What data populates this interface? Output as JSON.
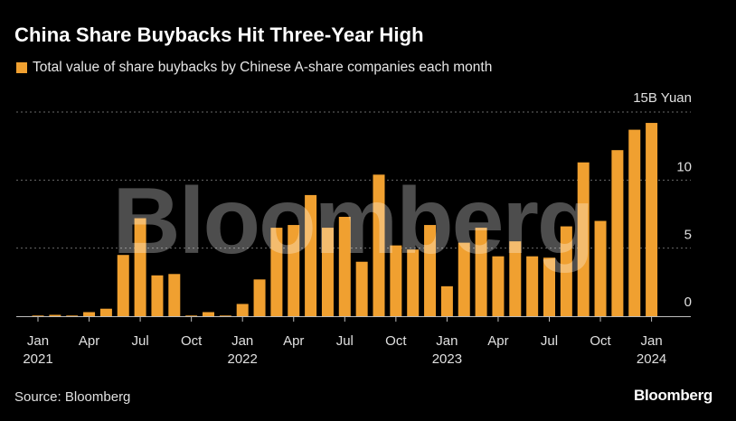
{
  "title": "China Share Buybacks Hit Three-Year High",
  "legend_label": "Total value of share buybacks by Chinese A-share companies each month",
  "source": "Source: Bloomberg",
  "brand": "Bloomberg",
  "watermark": "Bloomberg",
  "colors": {
    "bar": "#f0a030",
    "background": "#000000",
    "grid": "#6a6a6a",
    "text": "#e0e0e0"
  },
  "chart_data": {
    "type": "bar",
    "title": "China Share Buybacks Hit Three-Year High",
    "ylabel": "15B Yuan",
    "ylim": [
      0,
      15
    ],
    "yticks": [
      {
        "value": 0,
        "label": "0"
      },
      {
        "value": 5,
        "label": "5"
      },
      {
        "value": 10,
        "label": "10"
      },
      {
        "value": 15,
        "label": "15B Yuan"
      }
    ],
    "xtick_labels": [
      {
        "index": 0,
        "month": "Jan",
        "year": "2021"
      },
      {
        "index": 3,
        "month": "Apr",
        "year": ""
      },
      {
        "index": 6,
        "month": "Jul",
        "year": ""
      },
      {
        "index": 9,
        "month": "Oct",
        "year": ""
      },
      {
        "index": 12,
        "month": "Jan",
        "year": "2022"
      },
      {
        "index": 15,
        "month": "Apr",
        "year": ""
      },
      {
        "index": 18,
        "month": "Jul",
        "year": ""
      },
      {
        "index": 21,
        "month": "Oct",
        "year": ""
      },
      {
        "index": 24,
        "month": "Jan",
        "year": "2023"
      },
      {
        "index": 27,
        "month": "Apr",
        "year": ""
      },
      {
        "index": 30,
        "month": "Jul",
        "year": ""
      },
      {
        "index": 33,
        "month": "Oct",
        "year": ""
      },
      {
        "index": 36,
        "month": "Jan",
        "year": "2024"
      }
    ],
    "categories": [
      "2021-01",
      "2021-02",
      "2021-03",
      "2021-04",
      "2021-05",
      "2021-06",
      "2021-07",
      "2021-08",
      "2021-09",
      "2021-10",
      "2021-11",
      "2021-12",
      "2022-01",
      "2022-02",
      "2022-03",
      "2022-04",
      "2022-05",
      "2022-06",
      "2022-07",
      "2022-08",
      "2022-09",
      "2022-10",
      "2022-11",
      "2022-12",
      "2023-01",
      "2023-02",
      "2023-03",
      "2023-04",
      "2023-05",
      "2023-06",
      "2023-07",
      "2023-08",
      "2023-09",
      "2023-10",
      "2023-11",
      "2023-12",
      "2024-01"
    ],
    "values": [
      0.05,
      0.1,
      0.05,
      0.3,
      0.55,
      4.5,
      7.2,
      3.0,
      3.1,
      0.05,
      0.3,
      0.05,
      0.9,
      2.7,
      6.5,
      6.7,
      8.9,
      6.5,
      7.3,
      4.0,
      10.4,
      5.2,
      4.9,
      6.7,
      2.2,
      5.4,
      6.5,
      4.4,
      5.5,
      4.4,
      4.3,
      6.6,
      11.3,
      7.0,
      12.2,
      13.7,
      14.2
    ]
  }
}
